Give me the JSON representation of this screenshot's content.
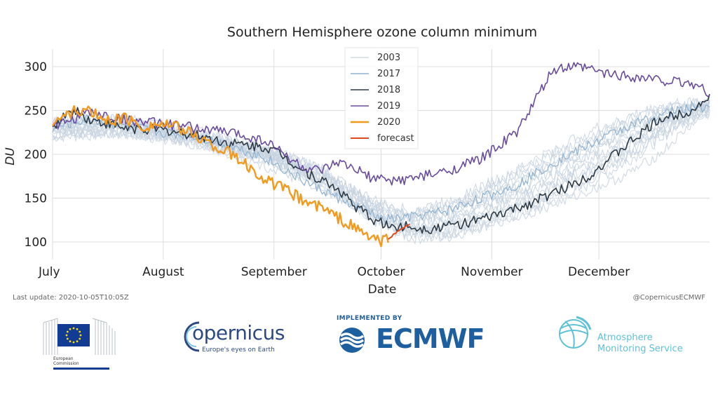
{
  "chart_data": {
    "type": "line",
    "title": "Southern Hemisphere ozone column minimum",
    "xlabel": "Date",
    "ylabel": "DU",
    "ylim": [
      80,
      320
    ],
    "yticks": [
      100,
      150,
      200,
      250,
      300
    ],
    "x_month_ticks": [
      {
        "label": "July",
        "day": 0
      },
      {
        "label": "August",
        "day": 31
      },
      {
        "label": "September",
        "day": 62
      },
      {
        "label": "October",
        "day": 92
      },
      {
        "label": "November",
        "day": 123
      },
      {
        "label": "December",
        "day": 153
      }
    ],
    "xlim": [
      0,
      184
    ],
    "grid": true,
    "legend_position": "top-center",
    "legend": [
      "2003",
      "2017",
      "2018",
      "2019",
      "2020",
      "forecast"
    ],
    "series": [
      {
        "name": "2003",
        "color": "#d4dbe4",
        "width": 1.2,
        "x": [
          0,
          10,
          20,
          30,
          40,
          50,
          60,
          70,
          80,
          90,
          100,
          110,
          120,
          130,
          140,
          150,
          160,
          170,
          180,
          184
        ],
        "y": [
          225,
          228,
          224,
          218,
          210,
          200,
          185,
          170,
          150,
          130,
          112,
          108,
          118,
          128,
          142,
          158,
          175,
          200,
          238,
          245
        ]
      },
      {
        "name": "2017",
        "color": "#8fb2d0",
        "width": 1.2,
        "x": [
          0,
          10,
          20,
          30,
          40,
          50,
          60,
          70,
          80,
          90,
          92,
          100,
          110,
          120,
          130,
          140,
          150,
          160,
          170,
          180,
          184
        ],
        "y": [
          230,
          240,
          232,
          225,
          220,
          210,
          195,
          170,
          150,
          132,
          125,
          128,
          135,
          150,
          165,
          190,
          210,
          230,
          245,
          255,
          250
        ]
      },
      {
        "name": "2018",
        "color": "#2d3a45",
        "width": 1.6,
        "x": [
          0,
          6,
          10,
          20,
          30,
          40,
          50,
          60,
          64,
          70,
          80,
          85,
          90,
          95,
          100,
          105,
          110,
          120,
          130,
          140,
          150,
          160,
          170,
          175,
          180,
          184
        ],
        "y": [
          232,
          252,
          240,
          230,
          228,
          222,
          212,
          208,
          200,
          182,
          160,
          140,
          125,
          117,
          118,
          115,
          118,
          125,
          138,
          155,
          175,
          208,
          240,
          245,
          252,
          268
        ]
      },
      {
        "name": "2019",
        "color": "#6a4c9c",
        "width": 1.6,
        "x": [
          0,
          10,
          20,
          30,
          40,
          50,
          60,
          70,
          75,
          80,
          85,
          90,
          95,
          100,
          110,
          120,
          130,
          135,
          140,
          145,
          150,
          155,
          160,
          170,
          180,
          184
        ],
        "y": [
          230,
          248,
          240,
          235,
          230,
          225,
          215,
          185,
          180,
          190,
          182,
          172,
          170,
          172,
          180,
          195,
          225,
          260,
          295,
          300,
          298,
          292,
          290,
          285,
          280,
          270
        ]
      },
      {
        "name": "2020",
        "color": "#f29a1e",
        "width": 2.4,
        "x": [
          0,
          5,
          10,
          15,
          20,
          25,
          30,
          35,
          40,
          45,
          50,
          55,
          60,
          65,
          70,
          75,
          80,
          85,
          88,
          90,
          92,
          94
        ],
        "y": [
          235,
          248,
          250,
          238,
          242,
          232,
          235,
          230,
          222,
          210,
          200,
          185,
          170,
          160,
          148,
          140,
          128,
          115,
          108,
          104,
          100,
          104
        ]
      },
      {
        "name": "forecast",
        "color": "#e0481e",
        "width": 2.0,
        "x": [
          94,
          96,
          98,
          100
        ],
        "y": [
          104,
          110,
          116,
          120
        ]
      }
    ],
    "background_series_count": 14,
    "background_color": "#c7d3e0"
  },
  "footer": {
    "last_update": "Last update: 2020-10-05T10:05Z",
    "credit": "@CopernicusECMWF"
  },
  "logos": {
    "ec_name_line1": "European",
    "ec_name_line2": "Commission",
    "copernicus_word": "opernicus",
    "copernicus_tagline": "Europe's eyes on Earth",
    "ecmwf_implemented": "IMPLEMENTED BY",
    "ecmwf_word": "ECMWF",
    "cams_line1": "Atmosphere",
    "cams_line2": "Monitoring Service"
  }
}
